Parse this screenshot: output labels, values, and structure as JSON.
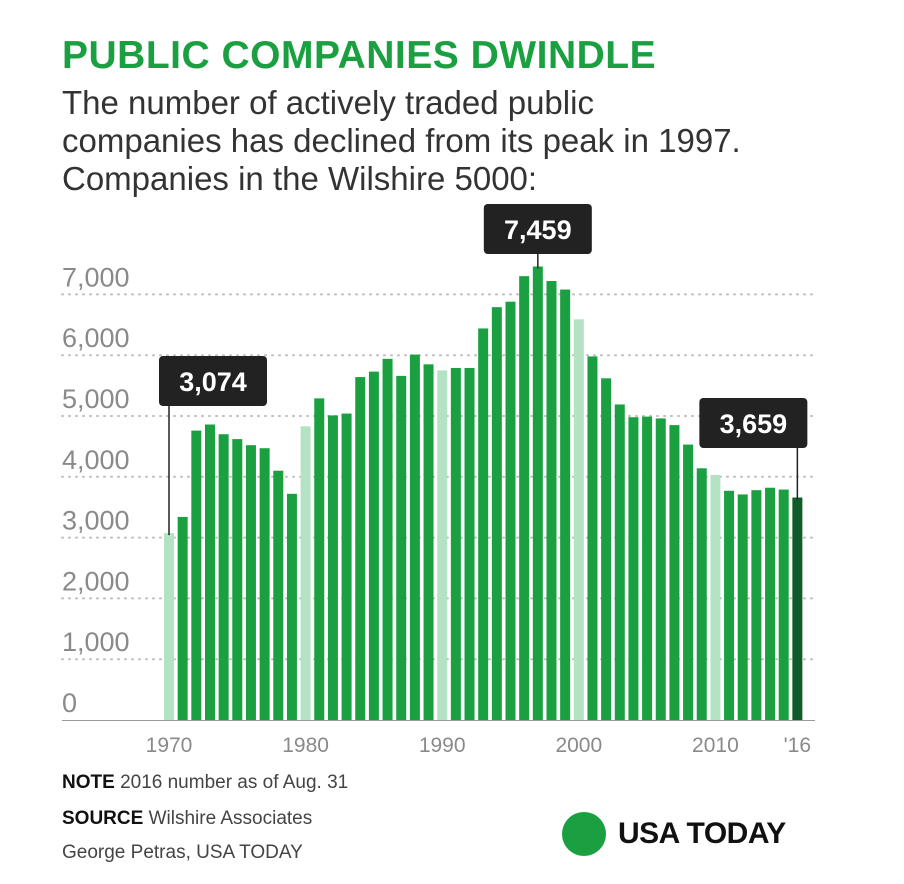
{
  "title": "PUBLIC COMPANIES DWINDLE",
  "subtitle_lines": [
    "The number of actively traded public",
    "companies has declined from its peak in 1997.",
    "Companies in the Wilshire 5000:"
  ],
  "chart_data": {
    "type": "bar",
    "ylim": [
      0,
      7459
    ],
    "yticks": [
      0,
      1000,
      2000,
      3000,
      4000,
      5000,
      6000,
      7000
    ],
    "ytick_labels": [
      "0",
      "1,000",
      "2,000",
      "3,000",
      "4,000",
      "5,000",
      "6,000",
      "7,000"
    ],
    "xtick_labels": [
      {
        "year": 1970,
        "label": "1970"
      },
      {
        "year": 1980,
        "label": "1980"
      },
      {
        "year": 1990,
        "label": "1990"
      },
      {
        "year": 2000,
        "label": "2000"
      },
      {
        "year": 2010,
        "label": "2010"
      },
      {
        "year": 2016,
        "label": "'16"
      }
    ],
    "grid": "dotted horizontal",
    "years": [
      1970,
      1971,
      1972,
      1973,
      1974,
      1975,
      1976,
      1977,
      1978,
      1979,
      1980,
      1981,
      1982,
      1983,
      1984,
      1985,
      1986,
      1987,
      1988,
      1989,
      1990,
      1991,
      1992,
      1993,
      1994,
      1995,
      1996,
      1997,
      1998,
      1999,
      2000,
      2001,
      2002,
      2003,
      2004,
      2005,
      2006,
      2007,
      2008,
      2009,
      2010,
      2011,
      2012,
      2013,
      2014,
      2015,
      2016
    ],
    "values": [
      3074,
      3340,
      4760,
      4860,
      4700,
      4620,
      4520,
      4470,
      4100,
      3720,
      4830,
      5290,
      5010,
      5040,
      5640,
      5730,
      5940,
      5660,
      6010,
      5850,
      5750,
      5790,
      5790,
      6440,
      6790,
      6880,
      7300,
      7459,
      7220,
      7080,
      6590,
      5980,
      5620,
      5190,
      4980,
      4990,
      4960,
      4850,
      4530,
      4140,
      4030,
      3770,
      3710,
      3780,
      3820,
      3790,
      3659
    ],
    "colors": {
      "normal": "#1aa040",
      "decade": "#b3e3c2",
      "latest": "#0e5c27"
    },
    "callouts": [
      {
        "year": 1970,
        "label": "3,074"
      },
      {
        "year": 1997,
        "label": "7,459"
      },
      {
        "year": 2016,
        "label": "3,659"
      }
    ]
  },
  "footer": {
    "note_label": "NOTE",
    "note_text": "2016 number as of Aug. 31",
    "source_label": "SOURCE",
    "source_text": "Wilshire Associates",
    "credit": "George Petras, USA TODAY"
  },
  "logo_text": "USA TODAY"
}
